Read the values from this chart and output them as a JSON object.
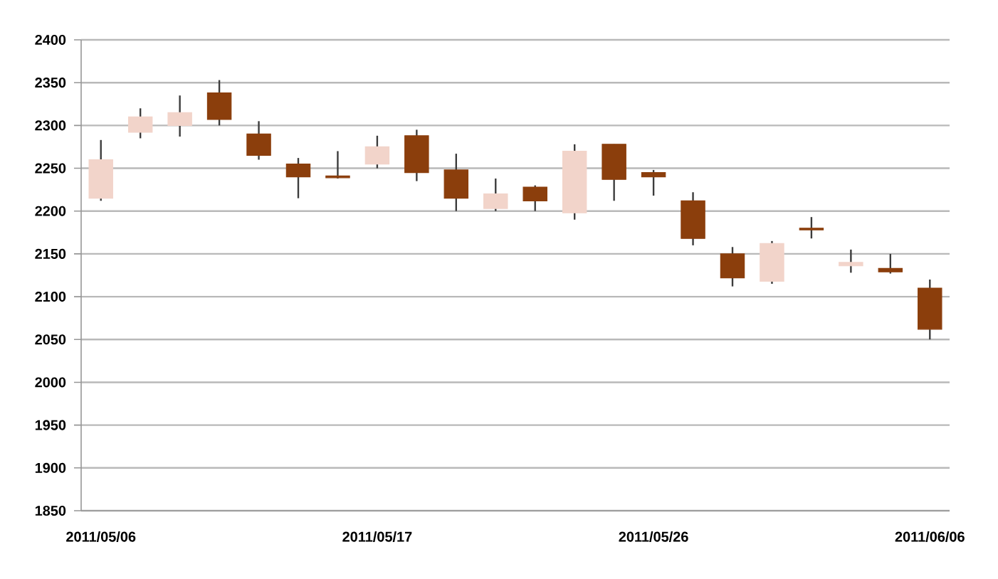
{
  "chart_data": {
    "type": "candlestick",
    "categories": [
      "2011/05/06",
      null,
      null,
      null,
      null,
      null,
      null,
      "2011/05/17",
      null,
      null,
      null,
      null,
      null,
      null,
      "2011/05/26",
      null,
      null,
      null,
      null,
      null,
      null,
      "2011/06/06"
    ],
    "ohlc": [
      [
        2215,
        2283,
        2212,
        2260
      ],
      [
        2292,
        2320,
        2285,
        2310
      ],
      [
        2300,
        2335,
        2287,
        2315
      ],
      [
        2338,
        2353,
        2300,
        2307
      ],
      [
        2290,
        2305,
        2260,
        2265
      ],
      [
        2255,
        2262,
        2215,
        2240
      ],
      [
        2241,
        2270,
        2238,
        2239
      ],
      [
        2255,
        2288,
        2250,
        2275
      ],
      [
        2288,
        2295,
        2235,
        2245
      ],
      [
        2248,
        2267,
        2200,
        2215
      ],
      [
        2203,
        2238,
        2200,
        2220
      ],
      [
        2228,
        2230,
        2200,
        2212
      ],
      [
        2198,
        2278,
        2190,
        2270
      ],
      [
        2278,
        2278,
        2212,
        2237
      ],
      [
        2245,
        2248,
        2218,
        2240
      ],
      [
        2212,
        2222,
        2160,
        2168
      ],
      [
        2150,
        2158,
        2112,
        2122
      ],
      [
        2118,
        2165,
        2115,
        2162
      ],
      [
        2180,
        2193,
        2168,
        2178
      ],
      [
        2136,
        2155,
        2128,
        2140
      ],
      [
        2133,
        2150,
        2127,
        2129
      ],
      [
        2110,
        2120,
        2050,
        2062
      ]
    ],
    "colors": [
      "#f2d4ca",
      "#f2d4ca",
      "#f2d4ca",
      "#8b3e0c",
      "#8b3e0c",
      "#8b3e0c",
      "#8b3e0c",
      "#f2d4ca",
      "#8b3e0c",
      "#8b3e0c",
      "#f2d4ca",
      "#8b3e0c",
      "#f2d4ca",
      "#8b3e0c",
      "#8b3e0c",
      "#8b3e0c",
      "#8b3e0c",
      "#f2d4ca",
      "#8b3e0c",
      "#f2d4ca",
      "#8b3e0c",
      "#8b3e0c"
    ],
    "ylim": [
      1850,
      2400
    ],
    "yticks": [
      1850,
      1900,
      1950,
      2000,
      2050,
      2100,
      2150,
      2200,
      2250,
      2300,
      2350,
      2400
    ],
    "grid": "y"
  }
}
